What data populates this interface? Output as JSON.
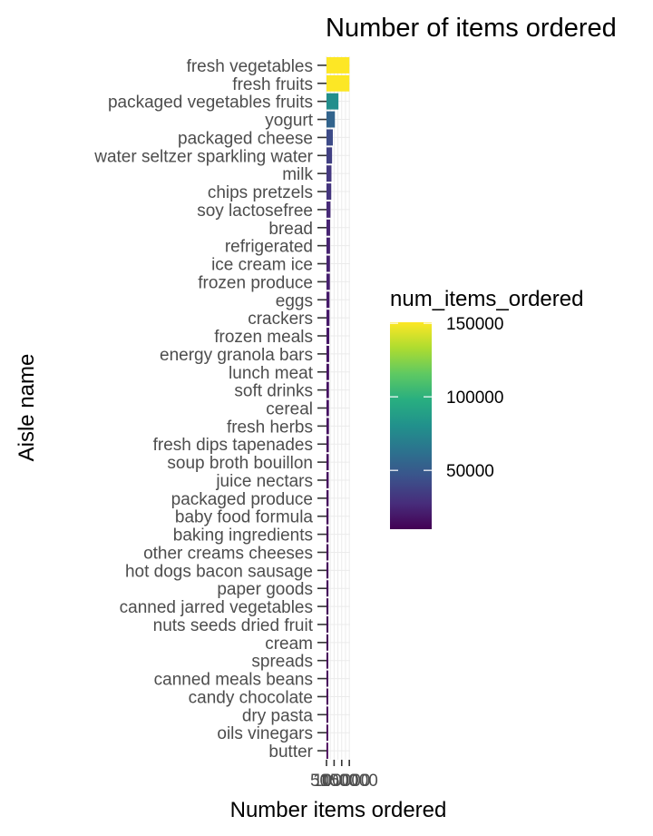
{
  "chart_data": {
    "type": "bar",
    "orientation": "horizontal",
    "title": "Number of items ordered",
    "xlabel": "Number items ordered",
    "ylabel": "Aisle name",
    "xlim": [
      0,
      155000
    ],
    "x_ticks": [
      0,
      50000,
      100000,
      150000
    ],
    "x_tick_labels": [
      "0",
      "50000",
      "100000",
      "150000"
    ],
    "grid": true,
    "legend": {
      "title": "num_items_ordered",
      "placement": "right",
      "scale": "viridis",
      "range": [
        10000,
        150700
      ],
      "ticks": [
        50000,
        100000,
        150000
      ],
      "tick_labels": [
        "50000",
        "100000",
        "150000"
      ]
    },
    "categories": [
      "fresh vegetables",
      "fresh fruits",
      "packaged vegetables fruits",
      "yogurt",
      "packaged cheese",
      "water seltzer sparkling water",
      "milk",
      "chips pretzels",
      "soy lactosefree",
      "bread",
      "refrigerated",
      "ice cream ice",
      "frozen produce",
      "eggs",
      "crackers",
      "frozen meals",
      "energy granola bars",
      "lunch meat",
      "soft drinks",
      "cereal",
      "fresh herbs",
      "fresh dips tapenades",
      "soup broth bouillon",
      "juice nectars",
      "packaged produce",
      "baby food formula",
      "baking ingredients",
      "other creams cheeses",
      "hot dogs bacon sausage",
      "paper goods",
      "canned jarred vegetables",
      "nuts seeds dried fruit",
      "cream",
      "spreads",
      "canned meals beans",
      "candy chocolate",
      "dry pasta",
      "oils vinegars",
      "butter"
    ],
    "values": [
      150609,
      150473,
      78493,
      55240,
      41699,
      36617,
      32644,
      31269,
      26240,
      23635,
      23228,
      22676,
      22132,
      19875,
      19592,
      18221,
      17449,
      16957,
      16279,
      16201,
      16052,
      15076,
      14849,
      14400,
      13853,
      13298,
      13088,
      12966,
      12732,
      12650,
      12452,
      12238,
      11981,
      11667,
      11643,
      11495,
      11322,
      11144,
      10817
    ]
  }
}
